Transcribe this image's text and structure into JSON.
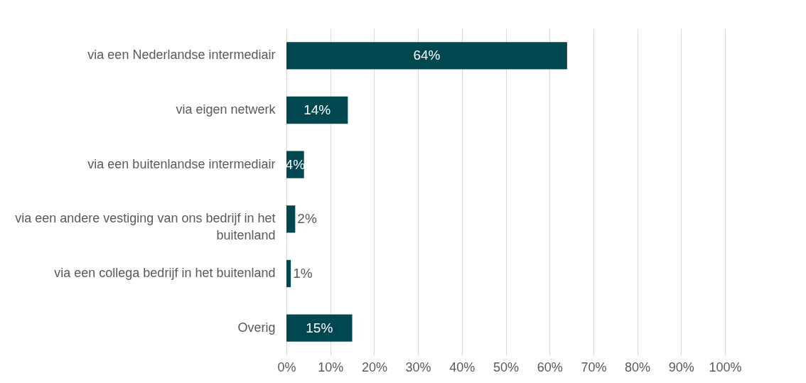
{
  "chart_data": {
    "type": "bar",
    "orientation": "horizontal",
    "categories": [
      "via een Nederlandse intermediair",
      "via eigen netwerk",
      "via een buitenlandse intermediair",
      "via een andere vestiging van ons bedrijf in het buitenland",
      "via een collega bedrijf in het buitenland",
      "Overig"
    ],
    "values": [
      64,
      14,
      4,
      2,
      1,
      15
    ],
    "value_labels": [
      "64%",
      "14%",
      "4%",
      "2%",
      "1%",
      "15%"
    ],
    "color": "#004750",
    "xlim": [
      0,
      100
    ],
    "xticks": [
      {
        "value": 0,
        "label": "0%"
      },
      {
        "value": 10,
        "label": "10%"
      },
      {
        "value": 20,
        "label": "20%"
      },
      {
        "value": 30,
        "label": "30%"
      },
      {
        "value": 40,
        "label": "40%"
      },
      {
        "value": 50,
        "label": "50%"
      },
      {
        "value": 60,
        "label": "60%"
      },
      {
        "value": 70,
        "label": "70%"
      },
      {
        "value": 80,
        "label": "80%"
      },
      {
        "value": 90,
        "label": "90%"
      },
      {
        "value": 100,
        "label": "100%"
      }
    ],
    "grid": "x"
  }
}
